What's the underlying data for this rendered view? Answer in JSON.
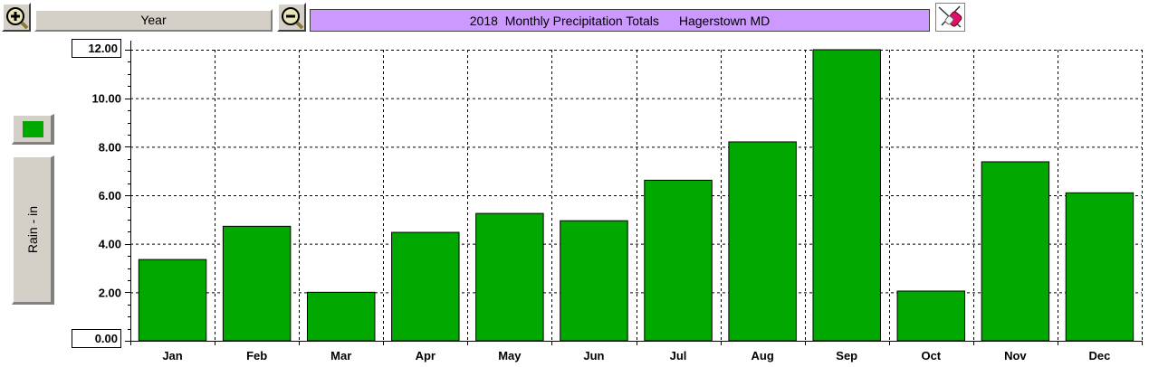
{
  "toolbar": {
    "zoom_in_icon": "zoom-in-icon",
    "zoom_out_icon": "zoom-out-icon",
    "period_label": "Year",
    "title_main": "2018  Monthly Precipitation Totals",
    "title_location": "Hagerstown MD",
    "tool_icon": "erase-tool-icon",
    "title_bg": "#cc99ff"
  },
  "legend": {
    "swatch_color": "#00a800",
    "series_label": "Rain - in"
  },
  "y_extremes": {
    "max_label": "12.00",
    "min_label": "0.00"
  },
  "chart_data": {
    "type": "bar",
    "title": "2018  Monthly Precipitation Totals      Hagerstown MD",
    "xlabel": "",
    "ylabel": "Rain - in",
    "categories": [
      "Jan",
      "Feb",
      "Mar",
      "Apr",
      "May",
      "Jun",
      "Jul",
      "Aug",
      "Sep",
      "Oct",
      "Nov",
      "Dec"
    ],
    "values": [
      3.35,
      4.72,
      2.0,
      4.47,
      5.25,
      4.95,
      6.62,
      8.2,
      12.0,
      2.05,
      7.38,
      6.1
    ],
    "ylim": [
      0,
      12
    ],
    "yticks": [
      "2.00",
      "4.00",
      "6.00",
      "8.00",
      "10.00"
    ],
    "bar_color": "#00a800",
    "grid": true
  }
}
